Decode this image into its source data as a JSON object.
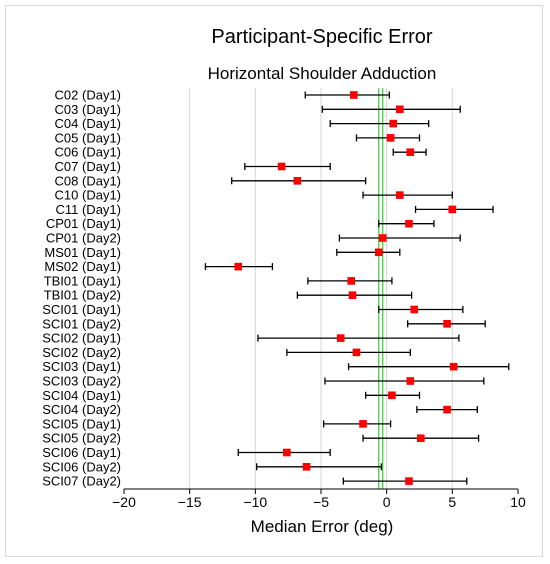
{
  "chart_data": {
    "type": "scatter",
    "subtype": "forest-plot-with-error-bars",
    "title": "Participant-Specific Error",
    "subtitle": "Horizontal Shoulder Adduction",
    "xlabel": "Median Error (deg)",
    "ylabel": "",
    "xlim": [
      -20,
      10
    ],
    "xticks": [
      -20,
      -15,
      -10,
      -5,
      0,
      5,
      10
    ],
    "xtick_labels": [
      "−20",
      "−15",
      "−10",
      "−5",
      "0",
      "5",
      "10"
    ],
    "grid": "vertical",
    "marker_color": "#ff0000",
    "errorbar_color": "#000000",
    "reference_lines": [
      {
        "x": -0.6,
        "color": "#33cc33"
      },
      {
        "x": -0.3,
        "color": "#33cc33"
      }
    ],
    "categories": [
      "C02 (Day1)",
      "C03 (Day1)",
      "C04 (Day1)",
      "C05 (Day1)",
      "C06 (Day1)",
      "C07 (Day1)",
      "C08 (Day1)",
      "C10 (Day1)",
      "C11 (Day1)",
      "CP01 (Day1)",
      "CP01 (Day2)",
      "MS01 (Day1)",
      "MS02 (Day1)",
      "TBI01 (Day1)",
      "TBI01 (Day2)",
      "SCI01 (Day1)",
      "SCI01 (Day2)",
      "SCI02 (Day1)",
      "SCI02 (Day2)",
      "SCI03 (Day1)",
      "SCI03 (Day2)",
      "SCI04 (Day1)",
      "SCI04 (Day2)",
      "SCI05 (Day1)",
      "SCI05 (Day2)",
      "SCI06 (Day1)",
      "SCI06 (Day2)",
      "SCI07 (Day2)"
    ],
    "median": [
      -2.5,
      1.0,
      0.5,
      0.3,
      1.8,
      -8.0,
      -6.8,
      1.0,
      5.0,
      1.7,
      -0.3,
      -0.6,
      -11.3,
      -2.7,
      -2.6,
      2.1,
      4.6,
      -3.5,
      -2.3,
      5.1,
      1.8,
      0.4,
      4.6,
      -1.8,
      2.6,
      -7.6,
      -6.1,
      1.7
    ],
    "lower": [
      -6.2,
      -4.9,
      -4.3,
      -2.3,
      0.5,
      -10.8,
      -11.8,
      -1.8,
      2.2,
      -0.6,
      -3.6,
      -3.8,
      -13.8,
      -6.0,
      -6.8,
      -0.6,
      1.6,
      -9.8,
      -7.6,
      -2.9,
      -4.7,
      -1.6,
      2.3,
      -4.8,
      -1.8,
      -11.3,
      -9.9,
      -3.3
    ],
    "upper": [
      0.2,
      5.6,
      3.2,
      2.5,
      3.0,
      -4.3,
      -1.6,
      5.0,
      8.1,
      3.6,
      5.6,
      1.0,
      -8.7,
      0.4,
      1.9,
      5.8,
      7.5,
      5.5,
      1.8,
      9.3,
      7.4,
      2.5,
      6.9,
      0.3,
      7.0,
      -4.3,
      -0.4,
      6.1
    ]
  }
}
